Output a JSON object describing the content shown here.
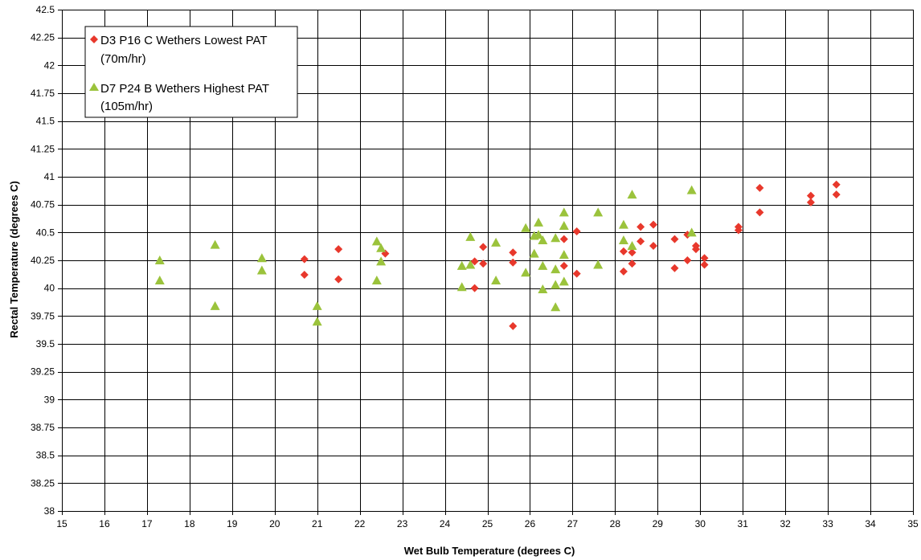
{
  "chart_data": {
    "type": "scatter",
    "xlabel": "Wet Bulb Temperature (degrees C)",
    "ylabel": "Rectal Temperature (degrees C)",
    "xlim": [
      15,
      35
    ],
    "ylim": [
      38,
      42.5
    ],
    "x_ticks": [
      "15",
      "16",
      "17",
      "18",
      "19",
      "20",
      "21",
      "22",
      "23",
      "24",
      "25",
      "26",
      "27",
      "28",
      "29",
      "30",
      "31",
      "32",
      "33",
      "34",
      "35"
    ],
    "y_ticks": [
      "38",
      "38.25",
      "38.5",
      "38.75",
      "39",
      "39.25",
      "39.5",
      "39.75",
      "40",
      "40.25",
      "40.5",
      "40.75",
      "41",
      "41.25",
      "41.5",
      "41.75",
      "42",
      "42.25",
      "42.5"
    ],
    "grid": true,
    "legend_position": "top-left",
    "series": [
      {
        "name": "D3 P16 C Wethers Lowest PAT",
        "name_line2": "(70m/hr)",
        "marker": "diamond",
        "color": "#e8382c",
        "points": [
          [
            20.7,
            40.26
          ],
          [
            20.7,
            40.12
          ],
          [
            21.5,
            40.35
          ],
          [
            21.5,
            40.08
          ],
          [
            22.6,
            40.31
          ],
          [
            24.7,
            40.24
          ],
          [
            24.7,
            40.0
          ],
          [
            24.9,
            40.37
          ],
          [
            24.9,
            40.22
          ],
          [
            25.6,
            40.32
          ],
          [
            25.6,
            40.23
          ],
          [
            25.6,
            39.66
          ],
          [
            26.8,
            40.44
          ],
          [
            26.8,
            40.2
          ],
          [
            27.1,
            40.51
          ],
          [
            27.1,
            40.13
          ],
          [
            28.2,
            40.33
          ],
          [
            28.2,
            40.15
          ],
          [
            28.4,
            40.32
          ],
          [
            28.4,
            40.22
          ],
          [
            28.6,
            40.55
          ],
          [
            28.6,
            40.42
          ],
          [
            28.9,
            40.57
          ],
          [
            28.9,
            40.38
          ],
          [
            29.4,
            40.44
          ],
          [
            29.4,
            40.18
          ],
          [
            29.7,
            40.48
          ],
          [
            29.7,
            40.25
          ],
          [
            29.9,
            40.38
          ],
          [
            29.9,
            40.35
          ],
          [
            30.1,
            40.27
          ],
          [
            30.1,
            40.21
          ],
          [
            30.9,
            40.55
          ],
          [
            30.9,
            40.52
          ],
          [
            31.4,
            40.9
          ],
          [
            31.4,
            40.68
          ],
          [
            32.6,
            40.83
          ],
          [
            32.6,
            40.77
          ],
          [
            33.2,
            40.93
          ],
          [
            33.2,
            40.84
          ]
        ]
      },
      {
        "name": "D7 P24 B Wethers Highest PAT",
        "name_line2": "(105m/hr)",
        "marker": "triangle",
        "color": "#9bc33c",
        "points": [
          [
            17.3,
            40.25
          ],
          [
            17.3,
            40.07
          ],
          [
            18.6,
            40.39
          ],
          [
            18.6,
            39.84
          ],
          [
            19.7,
            40.27
          ],
          [
            19.7,
            40.16
          ],
          [
            21.0,
            39.84
          ],
          [
            21.0,
            39.7
          ],
          [
            22.4,
            40.42
          ],
          [
            22.4,
            40.07
          ],
          [
            22.5,
            40.36
          ],
          [
            22.5,
            40.24
          ],
          [
            24.4,
            40.2
          ],
          [
            24.4,
            40.01
          ],
          [
            24.6,
            40.46
          ],
          [
            24.6,
            40.21
          ],
          [
            25.2,
            40.41
          ],
          [
            25.2,
            40.07
          ],
          [
            25.9,
            40.54
          ],
          [
            25.9,
            40.14
          ],
          [
            26.1,
            40.47
          ],
          [
            26.1,
            40.31
          ],
          [
            26.2,
            40.59
          ],
          [
            26.2,
            40.48
          ],
          [
            26.3,
            40.43
          ],
          [
            26.3,
            40.2
          ],
          [
            26.3,
            39.99
          ],
          [
            26.6,
            40.45
          ],
          [
            26.6,
            40.17
          ],
          [
            26.6,
            40.03
          ],
          [
            26.6,
            39.83
          ],
          [
            26.8,
            40.68
          ],
          [
            26.8,
            40.56
          ],
          [
            26.8,
            40.3
          ],
          [
            26.8,
            40.06
          ],
          [
            27.6,
            40.68
          ],
          [
            27.6,
            40.21
          ],
          [
            28.2,
            40.57
          ],
          [
            28.2,
            40.43
          ],
          [
            28.4,
            40.84
          ],
          [
            28.4,
            40.38
          ],
          [
            29.8,
            40.88
          ],
          [
            29.8,
            40.5
          ]
        ]
      }
    ]
  }
}
